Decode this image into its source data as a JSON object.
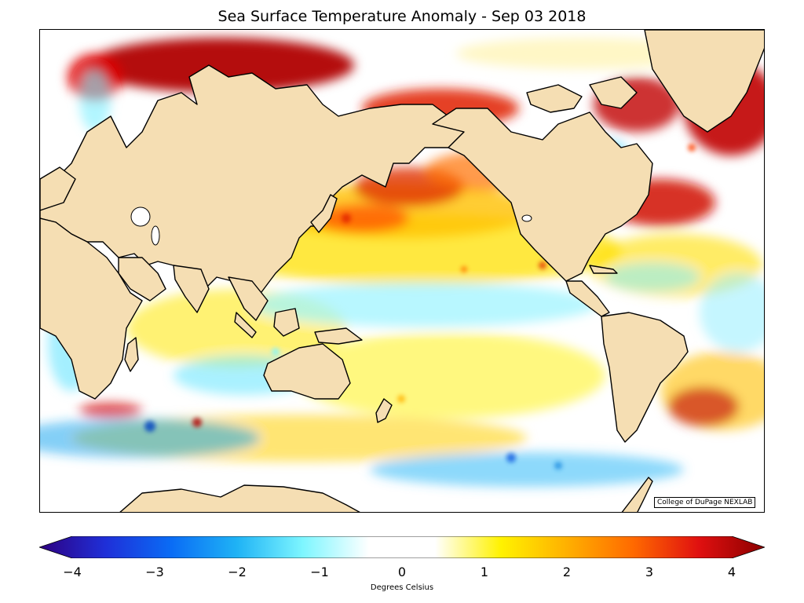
{
  "title": "Sea Surface Temperature Anomaly - Sep 03 2018",
  "credit": "College of DuPage NEXLAB",
  "colorbar": {
    "label": "Degrees Celsius",
    "min": -4,
    "max": 4,
    "ticks": [
      "−4",
      "−3",
      "−2",
      "−1",
      "0",
      "1",
      "2",
      "3",
      "4"
    ],
    "colors": [
      "#2e0080",
      "#1f2fd8",
      "#0a6cf5",
      "#1fb3f5",
      "#7ef6ff",
      "#ffffff",
      "#ffffff",
      "#fff200",
      "#ffb000",
      "#ff6a00",
      "#e01010",
      "#8b0000"
    ]
  },
  "map": {
    "land_color": "#f5deb3",
    "ocean_base_color": "#ffffff",
    "projection": "Pacific-centered"
  }
}
